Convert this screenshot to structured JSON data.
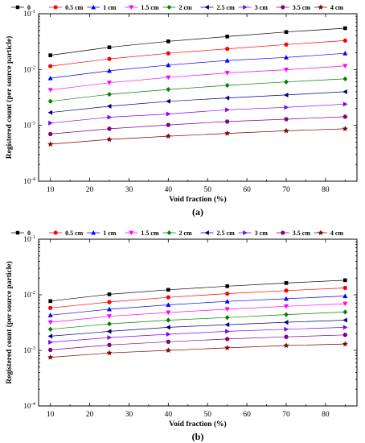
{
  "chart_data": [
    {
      "type": "line",
      "panel_label": "(a)",
      "xlabel": "Void fraction (%)",
      "ylabel": "Registered count (per source particle)",
      "x": [
        10,
        25,
        40,
        55,
        70,
        85
      ],
      "xlim": [
        7,
        88
      ],
      "ylim": [
        0.0001,
        0.1
      ],
      "yscale": "log",
      "x_ticks": [
        10,
        20,
        30,
        40,
        50,
        60,
        70,
        80
      ],
      "y_ticks": [
        {
          "value": 0.0001,
          "base": "10",
          "exp": "-4"
        },
        {
          "value": 0.001,
          "base": "10",
          "exp": "-3"
        },
        {
          "value": 0.01,
          "base": "10",
          "exp": "-2"
        },
        {
          "value": 0.1,
          "base": "10",
          "exp": "-1"
        }
      ],
      "legend_position": "top",
      "series": [
        {
          "name": "0",
          "color": "#000000",
          "marker": "square",
          "values": [
            0.018,
            0.025,
            0.032,
            0.039,
            0.047,
            0.055
          ]
        },
        {
          "name": "0.5 cm",
          "color": "#ff0000",
          "marker": "circle",
          "values": [
            0.0115,
            0.0155,
            0.0195,
            0.0235,
            0.028,
            0.033
          ]
        },
        {
          "name": "1 cm",
          "color": "#0000ff",
          "marker": "triangle-up",
          "values": [
            0.007,
            0.0095,
            0.012,
            0.0145,
            0.0165,
            0.0195
          ]
        },
        {
          "name": "1.5 cm",
          "color": "#ff00ff",
          "marker": "triangle-down",
          "values": [
            0.0043,
            0.0058,
            0.0072,
            0.0087,
            0.0099,
            0.0116
          ]
        },
        {
          "name": "2 cm",
          "color": "#008000",
          "marker": "diamond",
          "values": [
            0.0027,
            0.0036,
            0.0044,
            0.0052,
            0.006,
            0.0068
          ]
        },
        {
          "name": "2.5 cm",
          "color": "#000080",
          "marker": "triangle-left",
          "values": [
            0.0017,
            0.0022,
            0.0027,
            0.0031,
            0.0035,
            0.004
          ]
        },
        {
          "name": "3 cm",
          "color": "#7b00ff",
          "marker": "triangle-right",
          "values": [
            0.0011,
            0.0014,
            0.0016,
            0.0019,
            0.0021,
            0.0024
          ]
        },
        {
          "name": "3.5 cm",
          "color": "#800080",
          "marker": "hexagon",
          "values": [
            0.0007,
            0.00087,
            0.00102,
            0.00117,
            0.00129,
            0.00143
          ]
        },
        {
          "name": "4 cm",
          "color": "#800000",
          "marker": "star",
          "values": [
            0.00046,
            0.00056,
            0.00064,
            0.00072,
            0.0008,
            0.00087
          ]
        }
      ]
    },
    {
      "type": "line",
      "panel_label": "(b)",
      "xlabel": "Void fraction (%)",
      "ylabel": "Registered count (per source particle)",
      "x": [
        10,
        25,
        40,
        55,
        70,
        85
      ],
      "xlim": [
        7,
        88
      ],
      "ylim": [
        0.0001,
        0.1
      ],
      "yscale": "log",
      "x_ticks": [
        10,
        20,
        30,
        40,
        50,
        60,
        70,
        80
      ],
      "y_ticks": [
        {
          "value": 0.0001,
          "base": "10",
          "exp": "-4"
        },
        {
          "value": 0.001,
          "base": "10",
          "exp": "-3"
        },
        {
          "value": 0.01,
          "base": "10",
          "exp": "-2"
        },
        {
          "value": 0.1,
          "base": "10",
          "exp": "-1"
        }
      ],
      "legend_position": "top",
      "series": [
        {
          "name": "0",
          "color": "#000000",
          "marker": "square",
          "values": [
            0.0077,
            0.0102,
            0.0123,
            0.0143,
            0.0163,
            0.0183
          ]
        },
        {
          "name": "0.5 cm",
          "color": "#ff0000",
          "marker": "circle",
          "values": [
            0.0058,
            0.0074,
            0.009,
            0.0105,
            0.0119,
            0.0133
          ]
        },
        {
          "name": "1 cm",
          "color": "#0000ff",
          "marker": "triangle-up",
          "values": [
            0.0043,
            0.0055,
            0.0066,
            0.0076,
            0.0085,
            0.0095
          ]
        },
        {
          "name": "1.5 cm",
          "color": "#ff00ff",
          "marker": "triangle-down",
          "values": [
            0.0032,
            0.0041,
            0.0048,
            0.0055,
            0.0062,
            0.0069
          ]
        },
        {
          "name": "2 cm",
          "color": "#008000",
          "marker": "diamond",
          "values": [
            0.0024,
            0.003,
            0.0035,
            0.0039,
            0.0044,
            0.0049
          ]
        },
        {
          "name": "2.5 cm",
          "color": "#000080",
          "marker": "triangle-left",
          "values": [
            0.0018,
            0.0022,
            0.0026,
            0.0029,
            0.0032,
            0.0035
          ]
        },
        {
          "name": "3 cm",
          "color": "#7b00ff",
          "marker": "triangle-right",
          "values": [
            0.0014,
            0.0017,
            0.00195,
            0.0022,
            0.0024,
            0.0026
          ]
        },
        {
          "name": "3.5 cm",
          "color": "#800080",
          "marker": "hexagon",
          "values": [
            0.00102,
            0.00125,
            0.00143,
            0.0016,
            0.00175,
            0.0019
          ]
        },
        {
          "name": "4 cm",
          "color": "#800000",
          "marker": "star",
          "values": [
            0.00075,
            0.0009,
            0.001,
            0.00111,
            0.00122,
            0.0013
          ]
        }
      ]
    }
  ]
}
